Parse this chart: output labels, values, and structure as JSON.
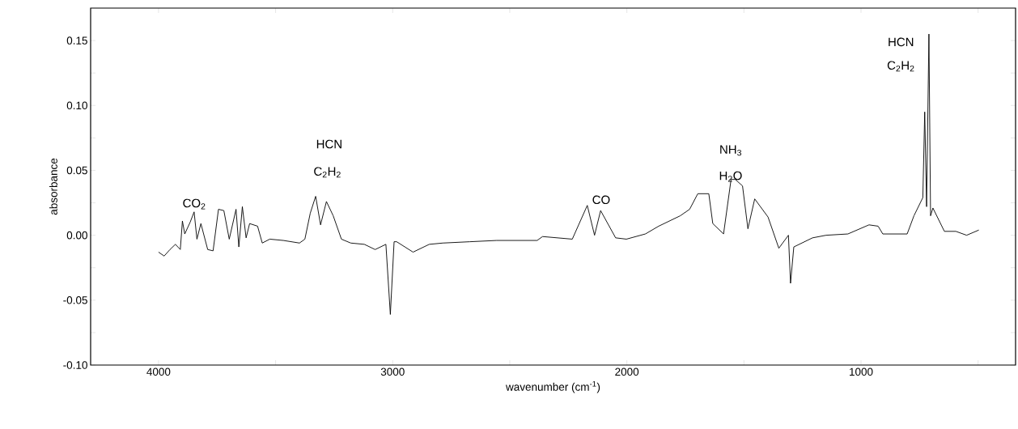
{
  "chart_data": {
    "type": "line",
    "xlabel": "wavenumber (cm$^{-1}$)",
    "ylabel": "absorbance",
    "x": [
      4000,
      3976,
      3951,
      3928,
      3907,
      3898,
      3888,
      3865,
      3848,
      3836,
      3819,
      3790,
      3767,
      3744,
      3721,
      3698,
      3669,
      3657,
      3642,
      3626,
      3611,
      3577,
      3557,
      3525,
      3467,
      3398,
      3375,
      3352,
      3329,
      3308,
      3283,
      3254,
      3219,
      3179,
      3121,
      3075,
      3029,
      3010,
      2994,
      2983,
      2913,
      2844,
      2786,
      2671,
      2556,
      2383,
      2360,
      2233,
      2169,
      2138,
      2112,
      2048,
      2002,
      1921,
      1864,
      1772,
      1732,
      1697,
      1650,
      1633,
      1587,
      1555,
      1537,
      1506,
      1483,
      1454,
      1397,
      1351,
      1310,
      1301,
      1287,
      1207,
      1149,
      1056,
      966,
      927,
      907,
      803,
      774,
      736,
      728,
      720,
      710,
      703,
      693,
      644,
      595,
      549,
      497
    ],
    "series": [
      {
        "color": "#000000",
        "values": [
          -0.013,
          -0.016,
          -0.011,
          -0.007,
          -0.011,
          0.011,
          0.001,
          0.01,
          0.018,
          -0.003,
          0.009,
          -0.011,
          -0.012,
          0.02,
          0.019,
          -0.003,
          0.02,
          -0.009,
          0.022,
          -0.002,
          0.009,
          0.007,
          -0.006,
          -0.003,
          -0.004,
          -0.006,
          -0.003,
          0.017,
          0.03,
          0.008,
          0.026,
          0.015,
          -0.003,
          -0.006,
          -0.007,
          -0.011,
          -0.007,
          -0.061,
          -0.005,
          -0.005,
          -0.013,
          -0.007,
          -0.006,
          -0.005,
          -0.004,
          -0.004,
          -0.001,
          -0.003,
          0.023,
          0.0,
          0.019,
          -0.002,
          -0.003,
          0.001,
          0.007,
          0.015,
          0.02,
          0.032,
          0.032,
          0.009,
          0.001,
          0.043,
          0.043,
          0.038,
          0.005,
          0.028,
          0.014,
          -0.01,
          0.0,
          -0.037,
          -0.009,
          -0.002,
          0.0,
          0.001,
          0.008,
          0.007,
          0.001,
          0.001,
          0.015,
          0.029,
          0.095,
          0.022,
          0.155,
          0.015,
          0.021,
          0.003,
          0.003,
          0.0,
          0.004
        ]
      }
    ],
    "xlim": [
      4290,
      340
    ],
    "xticks": [
      4000,
      {
        "value": 3500,
        "label": null
      },
      3000,
      {
        "value": 2500,
        "label": null
      },
      2000,
      {
        "value": 1500,
        "label": null
      },
      1000,
      {
        "value": 500,
        "label": null
      }
    ],
    "ylim": [
      -0.1,
      0.175
    ],
    "yticks": [
      {
        "value": -0.1,
        "label": "-0.10"
      },
      {
        "value": -0.075,
        "label": null
      },
      {
        "value": -0.05,
        "label": "-0.05"
      },
      {
        "value": -0.025,
        "label": null
      },
      {
        "value": 0.0,
        "label": "0.00"
      },
      {
        "value": 0.025,
        "label": null
      },
      {
        "value": 0.05,
        "label": "0.05"
      },
      {
        "value": 0.075,
        "label": null
      },
      {
        "value": 0.1,
        "label": "0.10"
      },
      {
        "value": 0.125,
        "label": null
      },
      {
        "value": 0.15,
        "label": "0.15"
      }
    ],
    "marker": "none",
    "line_style": "solid",
    "annotations": [
      "CO$_{2}$",
      "HCN",
      "C$_{2}$H$_{2}$",
      "CO",
      "NH$_{3}$",
      "H$_{2}$O",
      "HCN",
      "C$_{2}$H$_{2}$"
    ]
  }
}
